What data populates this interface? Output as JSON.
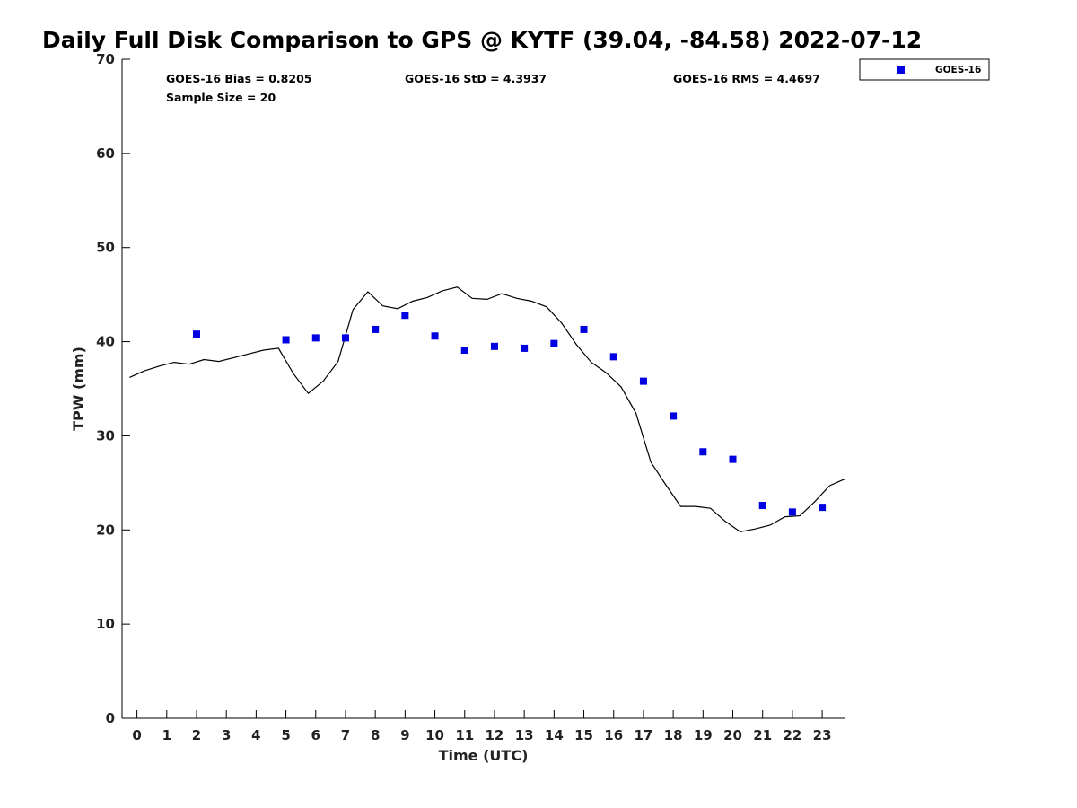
{
  "chart_data": {
    "type": "scatter",
    "title": "Daily Full Disk Comparison to GPS @ KYTF (39.04, -84.58) 2022-07-12",
    "xlabel": "Time (UTC)",
    "ylabel": "TPW (mm)",
    "xlim": [
      -0.5,
      23.75
    ],
    "ylim": [
      0,
      70
    ],
    "x_ticks": [
      0,
      1,
      2,
      3,
      4,
      5,
      6,
      7,
      8,
      9,
      10,
      11,
      12,
      13,
      14,
      15,
      16,
      17,
      18,
      19,
      20,
      21,
      22,
      23
    ],
    "y_ticks": [
      0,
      10,
      20,
      30,
      40,
      50,
      60,
      70
    ],
    "grid": false,
    "legend_position": "top-right, outside plot",
    "stats": [
      {
        "text": "GOES-16 Bias = 0.8205"
      },
      {
        "text": "GOES-16 StD = 4.3937"
      },
      {
        "text": "GOES-16 RMS = 4.4697"
      },
      {
        "text": "Sample Size = 20"
      }
    ],
    "series": [
      {
        "name": "GOES-16",
        "kind": "scatter",
        "marker": "square",
        "color": "#0000e0",
        "points": [
          {
            "x": 2,
            "y": 40.8
          },
          {
            "x": 5,
            "y": 40.2
          },
          {
            "x": 6,
            "y": 40.4
          },
          {
            "x": 7,
            "y": 40.4
          },
          {
            "x": 8,
            "y": 41.3
          },
          {
            "x": 9,
            "y": 42.8
          },
          {
            "x": 10,
            "y": 40.6
          },
          {
            "x": 11,
            "y": 39.1
          },
          {
            "x": 12,
            "y": 39.5
          },
          {
            "x": 13,
            "y": 39.3
          },
          {
            "x": 14,
            "y": 39.8
          },
          {
            "x": 15,
            "y": 41.3
          },
          {
            "x": 16,
            "y": 38.4
          },
          {
            "x": 17,
            "y": 35.8
          },
          {
            "x": 18,
            "y": 32.1
          },
          {
            "x": 19,
            "y": 28.3
          },
          {
            "x": 20,
            "y": 27.5
          },
          {
            "x": 21,
            "y": 22.6
          },
          {
            "x": 22,
            "y": 21.9
          },
          {
            "x": 23,
            "y": 22.4
          }
        ]
      },
      {
        "kind": "line",
        "color": "#000000",
        "points": [
          {
            "x": -0.25,
            "y": 36.2
          },
          {
            "x": 0.25,
            "y": 36.9
          },
          {
            "x": 0.75,
            "y": 37.4
          },
          {
            "x": 1.25,
            "y": 37.8
          },
          {
            "x": 1.75,
            "y": 37.6
          },
          {
            "x": 2.25,
            "y": 38.1
          },
          {
            "x": 2.75,
            "y": 37.9
          },
          {
            "x": 3.25,
            "y": 38.3
          },
          {
            "x": 3.75,
            "y": 38.7
          },
          {
            "x": 4.25,
            "y": 39.1
          },
          {
            "x": 4.75,
            "y": 39.3
          },
          {
            "x": 5.25,
            "y": 36.6
          },
          {
            "x": 5.75,
            "y": 34.5
          },
          {
            "x": 6.25,
            "y": 35.8
          },
          {
            "x": 6.75,
            "y": 37.9
          },
          {
            "x": 7.25,
            "y": 43.4
          },
          {
            "x": 7.75,
            "y": 45.3
          },
          {
            "x": 8.25,
            "y": 43.8
          },
          {
            "x": 8.75,
            "y": 43.5
          },
          {
            "x": 9.25,
            "y": 44.3
          },
          {
            "x": 9.75,
            "y": 44.7
          },
          {
            "x": 10.25,
            "y": 45.4
          },
          {
            "x": 10.75,
            "y": 45.8
          },
          {
            "x": 11.25,
            "y": 44.6
          },
          {
            "x": 11.75,
            "y": 44.5
          },
          {
            "x": 12.25,
            "y": 45.1
          },
          {
            "x": 12.75,
            "y": 44.6
          },
          {
            "x": 13.25,
            "y": 44.3
          },
          {
            "x": 13.75,
            "y": 43.7
          },
          {
            "x": 14.25,
            "y": 42.0
          },
          {
            "x": 14.75,
            "y": 39.7
          },
          {
            "x": 15.25,
            "y": 37.8
          },
          {
            "x": 15.75,
            "y": 36.7
          },
          {
            "x": 16.25,
            "y": 35.2
          },
          {
            "x": 16.75,
            "y": 32.4
          },
          {
            "x": 17.25,
            "y": 27.2
          },
          {
            "x": 17.75,
            "y": 24.8
          },
          {
            "x": 18.25,
            "y": 22.5
          },
          {
            "x": 18.75,
            "y": 22.5
          },
          {
            "x": 19.25,
            "y": 22.3
          },
          {
            "x": 19.75,
            "y": 20.9
          },
          {
            "x": 20.25,
            "y": 19.8
          },
          {
            "x": 20.75,
            "y": 20.1
          },
          {
            "x": 21.25,
            "y": 20.5
          },
          {
            "x": 21.75,
            "y": 21.4
          },
          {
            "x": 22.25,
            "y": 21.5
          },
          {
            "x": 22.75,
            "y": 23.0
          },
          {
            "x": 23.25,
            "y": 24.7
          },
          {
            "x": 23.75,
            "y": 25.4
          }
        ]
      }
    ]
  }
}
